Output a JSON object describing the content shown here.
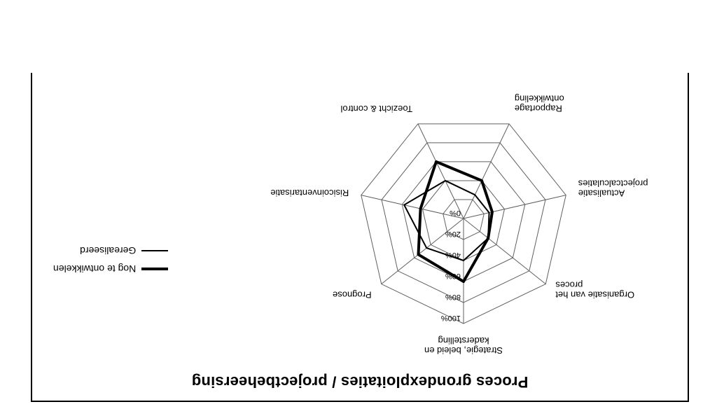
{
  "title": "Proces grondexploitaties / projectbeheersing",
  "chart": {
    "type": "radar",
    "background_color": "#ffffff",
    "grid_color": "#606060",
    "grid_line_width": 1,
    "radius_max_pct": 100,
    "tick_step_pct": 20,
    "tick_labels": [
      "0%",
      "20%",
      "40%",
      "60%",
      "80%",
      "100%"
    ],
    "tick_fontsize": 11,
    "label_fontsize": 13,
    "axes": [
      "Strategie, beleid en\nkaderstelling",
      "Prognose",
      "Risicoinventarisatie",
      "Toezicht & control",
      "Rapportage\nontwikkeling",
      "Actualisatie\nprojectcalculaties",
      "Organisatie van het\nproces"
    ],
    "series": [
      {
        "name": "Nog te ontwikkelen",
        "color": "#000000",
        "line_width": 4,
        "fill_opacity": 0,
        "values": [
          60,
          55,
          42,
          60,
          40,
          28,
          30
        ]
      },
      {
        "name": "Gerealiseerd",
        "color": "#000000",
        "line_width": 2,
        "fill_opacity": 0,
        "values": [
          40,
          45,
          58,
          40,
          25,
          25,
          30
        ]
      }
    ]
  },
  "legend": {
    "items": [
      {
        "label": "Nog te ontwikkelen",
        "line_width": 4,
        "color": "#000000"
      },
      {
        "label": "Gerealiseerd",
        "line_width": 2,
        "color": "#000000"
      }
    ]
  }
}
